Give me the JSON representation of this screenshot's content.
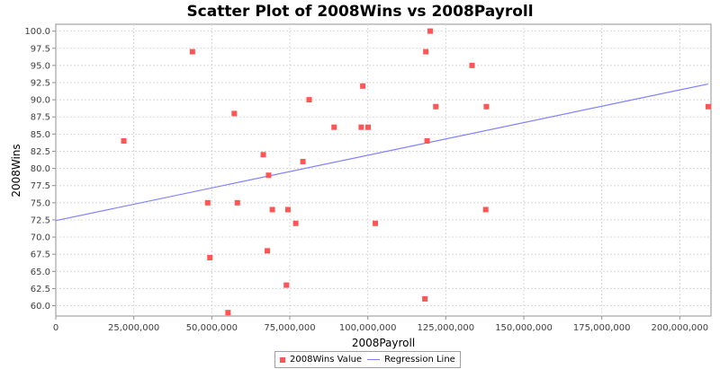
{
  "chart_data": {
    "type": "scatter",
    "title": "Scatter Plot of 2008Wins vs 2008Payroll",
    "xlabel": "2008Payroll",
    "ylabel": "2008Wins",
    "xlim": [
      0,
      210000000
    ],
    "ylim": [
      58.5,
      101
    ],
    "x_ticks": [
      0,
      25000000,
      50000000,
      75000000,
      100000000,
      125000000,
      150000000,
      175000000,
      200000000
    ],
    "x_tick_labels": [
      "0",
      "25,000,000",
      "50,000,000",
      "75,000,000",
      "100,000,000",
      "125,000,000",
      "150,000,000",
      "175,000,000",
      "200,000,000"
    ],
    "y_ticks": [
      60,
      62.5,
      65,
      67.5,
      70,
      72.5,
      75,
      77.5,
      80,
      82.5,
      85,
      87.5,
      90,
      92.5,
      95,
      97.5,
      100
    ],
    "y_tick_labels": [
      "60.0",
      "62.5",
      "65.0",
      "67.5",
      "70.0",
      "72.5",
      "75.0",
      "77.5",
      "80.0",
      "82.5",
      "85.0",
      "87.5",
      "90.0",
      "92.5",
      "95.0",
      "97.5",
      "100.0"
    ],
    "grid": true,
    "legend_position": "bottom",
    "series": [
      {
        "name": "2008Wins Value",
        "kind": "points",
        "color": "#ff5555",
        "points": [
          [
            21800000,
            84
          ],
          [
            43800000,
            97
          ],
          [
            48700000,
            75
          ],
          [
            49400000,
            67
          ],
          [
            55200000,
            59
          ],
          [
            57200000,
            88
          ],
          [
            58200000,
            75
          ],
          [
            66500000,
            82
          ],
          [
            67800000,
            68
          ],
          [
            68200000,
            79
          ],
          [
            69400000,
            74
          ],
          [
            73900000,
            63
          ],
          [
            74400000,
            74
          ],
          [
            76900000,
            72
          ],
          [
            79200000,
            81
          ],
          [
            81200000,
            90
          ],
          [
            89200000,
            86
          ],
          [
            97900000,
            86
          ],
          [
            98400000,
            92
          ],
          [
            100100000,
            86
          ],
          [
            102400000,
            72
          ],
          [
            118300000,
            61
          ],
          [
            118600000,
            97
          ],
          [
            119000000,
            84
          ],
          [
            120000000,
            100
          ],
          [
            121800000,
            89
          ],
          [
            133400000,
            95
          ],
          [
            137800000,
            74
          ],
          [
            138000000,
            89
          ],
          [
            209100000,
            89
          ]
        ]
      },
      {
        "name": "Regression Line",
        "kind": "line",
        "color": "#8080ff",
        "points": [
          [
            0,
            72.4
          ],
          [
            209100000,
            92.3
          ]
        ]
      }
    ]
  }
}
